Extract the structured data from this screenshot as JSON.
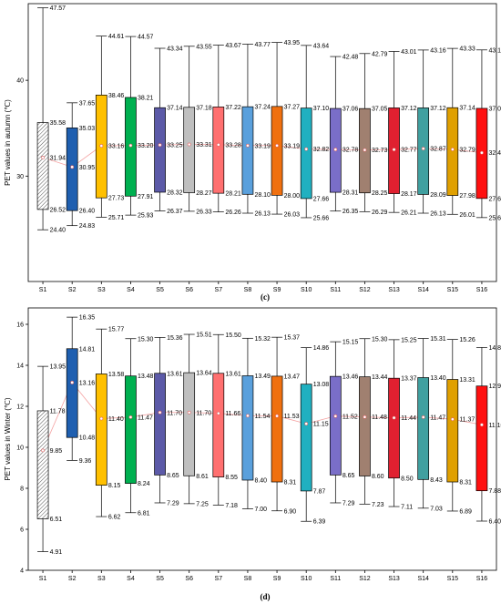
{
  "chart_data": [
    {
      "type": "box",
      "panel_label": "(c)",
      "ylabel": "PET values in autumn (℃)",
      "ylim": [
        19,
        48
      ],
      "yticks": [
        30,
        40
      ],
      "categories": [
        "S1",
        "S2",
        "S3",
        "S4",
        "S5",
        "S6",
        "S7",
        "S8",
        "S9",
        "S10",
        "S11",
        "S12",
        "S13",
        "S14",
        "S15",
        "S16"
      ],
      "colors": [
        "#ffffff",
        "#1f5fb0",
        "#ffc000",
        "#00b050",
        "#5c5aa8",
        "#bfbfbf",
        "#ff7070",
        "#5aa0dc",
        "#f07010",
        "#20b0c0",
        "#7a6ec8",
        "#a08070",
        "#e02030",
        "#40a0a0",
        "#e0a000",
        "#ff1010"
      ],
      "hatched": [
        true,
        false,
        false,
        false,
        false,
        false,
        false,
        false,
        false,
        false,
        false,
        false,
        false,
        false,
        false,
        false
      ],
      "max": [
        47.57,
        37.65,
        44.61,
        44.57,
        43.34,
        43.55,
        43.67,
        43.77,
        43.95,
        43.64,
        42.48,
        42.79,
        43.01,
        43.16,
        43.33,
        43.17
      ],
      "q3": [
        35.58,
        35.03,
        38.46,
        38.21,
        37.14,
        37.18,
        37.22,
        37.24,
        37.27,
        37.1,
        37.06,
        37.05,
        37.12,
        37.12,
        37.14,
        37.07
      ],
      "mean": [
        31.94,
        30.95,
        33.16,
        33.2,
        33.25,
        33.31,
        33.28,
        33.19,
        33.19,
        32.82,
        32.78,
        32.73,
        32.77,
        32.87,
        32.79,
        32.44
      ],
      "q1": [
        26.52,
        26.4,
        27.73,
        27.91,
        28.32,
        28.27,
        28.21,
        28.1,
        28.0,
        27.66,
        28.31,
        28.25,
        28.17,
        28.09,
        27.98,
        27.67
      ],
      "min": [
        24.4,
        24.83,
        25.71,
        25.93,
        26.37,
        26.33,
        26.26,
        26.13,
        26.03,
        25.66,
        26.35,
        26.29,
        26.21,
        26.13,
        26.01,
        25.67
      ],
      "max_labels": [
        "47.57",
        "37.65",
        "44.61",
        "44.57",
        "43.34",
        "43.55",
        "43.67",
        "43.77",
        "43.95",
        "43.64",
        "42.48",
        "42.79",
        "43.01",
        "43.16",
        "43.33",
        "43.17"
      ],
      "q3_labels": [
        "35.58",
        "35.03",
        "38.46",
        "38.21",
        "37.14",
        "37.18",
        "37.22",
        "37.24",
        "37.27",
        "37.10",
        "37.06",
        "37.05",
        "37.12",
        "37.12",
        "37.14",
        "37.07"
      ],
      "mean_labels": [
        "31.94",
        "30.95",
        "33.16",
        "33.20",
        "33.25",
        "33.31",
        "33.28",
        "33.19",
        "33.19",
        "32.82",
        "32.78",
        "32.73",
        "32.77",
        "32.87",
        "32.79",
        "32.44"
      ],
      "q1_labels": [
        "26.52",
        "26.40",
        "27.73",
        "27.91",
        "28.32",
        "28.27",
        "28.21",
        "28.10",
        "28.00",
        "27.66",
        "28.31",
        "28.25",
        "28.17",
        "28.09",
        "27.98",
        "27.67"
      ],
      "min_labels": [
        "24.40",
        "24.83",
        "25.71",
        "25.93",
        "26.37",
        "26.33",
        "26.26",
        "26.13",
        "26.03",
        "25.66",
        "26.35",
        "26.29",
        "26.21",
        "26.13",
        "26.01",
        "25.67"
      ]
    },
    {
      "type": "box",
      "panel_label": "(d)",
      "ylabel": "PET values in Winter (℃)",
      "ylim": [
        4,
        16.8
      ],
      "yticks": [
        4,
        6,
        8,
        10,
        12,
        14,
        16
      ],
      "categories": [
        "S1",
        "S2",
        "S3",
        "S4",
        "S5",
        "S6",
        "S7",
        "S8",
        "S9",
        "S10",
        "S11",
        "S12",
        "S13",
        "S14",
        "S15",
        "S16"
      ],
      "colors": [
        "#ffffff",
        "#1f5fb0",
        "#ffc000",
        "#00b050",
        "#5c5aa8",
        "#bfbfbf",
        "#ff7070",
        "#5aa0dc",
        "#f07010",
        "#20b0c0",
        "#7a6ec8",
        "#a08070",
        "#e02030",
        "#40a0a0",
        "#e0a000",
        "#ff1010"
      ],
      "hatched": [
        true,
        false,
        false,
        false,
        false,
        false,
        false,
        false,
        false,
        false,
        false,
        false,
        false,
        false,
        false,
        false
      ],
      "max": [
        13.95,
        16.35,
        15.77,
        15.3,
        15.36,
        15.51,
        15.5,
        15.32,
        15.37,
        14.86,
        15.15,
        15.3,
        15.25,
        15.31,
        15.26,
        14.87
      ],
      "q3": [
        11.78,
        14.81,
        13.58,
        13.48,
        13.61,
        13.64,
        13.61,
        13.49,
        13.47,
        13.08,
        13.46,
        13.44,
        13.37,
        13.4,
        13.31,
        12.99
      ],
      "mean": [
        9.85,
        13.16,
        11.4,
        11.47,
        11.7,
        11.7,
        11.66,
        11.54,
        11.53,
        11.15,
        11.52,
        11.48,
        11.44,
        11.47,
        11.37,
        11.1
      ],
      "q1": [
        6.51,
        10.48,
        8.15,
        8.24,
        8.65,
        8.61,
        8.55,
        8.4,
        8.31,
        7.87,
        8.65,
        8.6,
        8.5,
        8.43,
        8.31,
        7.88
      ],
      "min": [
        4.91,
        9.36,
        6.62,
        6.81,
        7.29,
        7.25,
        7.18,
        7.0,
        6.9,
        6.39,
        7.29,
        7.23,
        7.11,
        7.03,
        6.89,
        6.4
      ],
      "max_labels": [
        "13.95",
        "16.35",
        "15.77",
        "15.30",
        "15.36",
        "15.51",
        "15.50",
        "15.32",
        "15.37",
        "14.86",
        "15.15",
        "15.30",
        "15.25",
        "15.31",
        "15.26",
        "14.87"
      ],
      "q3_labels": [
        "11.78",
        "14.81",
        "13.58",
        "13.48",
        "13.61",
        "13.64",
        "13.61",
        "13.49",
        "13.47",
        "13.08",
        "13.46",
        "13.44",
        "13.37",
        "13.40",
        "13.31",
        "12.99"
      ],
      "mean_labels": [
        "9.85",
        "13.16",
        "11.40",
        "11.47",
        "11.70",
        "11.70",
        "11.66",
        "11.54",
        "11.53",
        "11.15",
        "11.52",
        "11.48",
        "11.44",
        "11.47",
        "11.37",
        "11.10"
      ],
      "q1_labels": [
        "6.51",
        "10.48",
        "8.15",
        "8.24",
        "8.65",
        "8.61",
        "8.55",
        "8.40",
        "8.31",
        "7.87",
        "8.65",
        "8.60",
        "8.50",
        "8.43",
        "8.31",
        "7.88"
      ],
      "min_labels": [
        "4.91",
        "9.36",
        "6.62",
        "6.81",
        "7.29",
        "7.25",
        "7.18",
        "7.00",
        "6.90",
        "6.39",
        "7.29",
        "7.23",
        "7.11",
        "7.03",
        "6.89",
        "6.40"
      ]
    }
  ]
}
